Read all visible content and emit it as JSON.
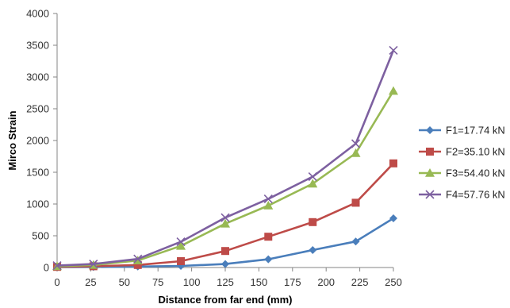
{
  "chart_data": {
    "type": "line",
    "title": "",
    "xlabel": "Distance from far end (mm)",
    "ylabel": "Mirco Strain",
    "xlim": [
      0,
      250
    ],
    "ylim": [
      0,
      4000
    ],
    "x_ticks": [
      0,
      25,
      50,
      75,
      100,
      125,
      150,
      175,
      200,
      225,
      250
    ],
    "y_ticks": [
      0,
      500,
      1000,
      1500,
      2000,
      2500,
      3000,
      3500,
      4000
    ],
    "grid": false,
    "legend_position": "right",
    "x": [
      0,
      27,
      60,
      92,
      125,
      157,
      190,
      222,
      250
    ],
    "series": [
      {
        "name": "F1=17.74 kN",
        "color": "#4a7ebb",
        "marker": "diamond",
        "values": [
          5,
          8,
          15,
          25,
          55,
          130,
          275,
          410,
          775
        ]
      },
      {
        "name": "F2=35.10 kN",
        "color": "#be4b48",
        "marker": "square",
        "values": [
          10,
          20,
          40,
          100,
          260,
          485,
          715,
          1020,
          1640
        ]
      },
      {
        "name": "F3=54.40 kN",
        "color": "#98b954",
        "marker": "triangle",
        "values": [
          20,
          40,
          110,
          340,
          690,
          975,
          1320,
          1800,
          2780
        ]
      },
      {
        "name": "F4=57.76 kN",
        "color": "#7d60a0",
        "marker": "x",
        "values": [
          30,
          55,
          135,
          405,
          785,
          1080,
          1430,
          1950,
          3420
        ]
      }
    ]
  }
}
